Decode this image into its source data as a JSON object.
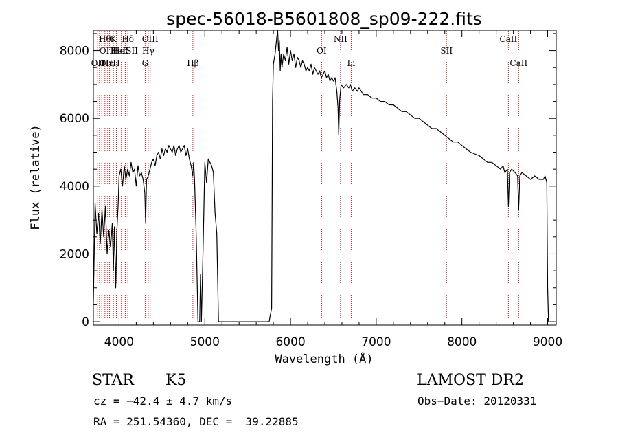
{
  "chart_data": {
    "type": "line",
    "title": "spec-56018-B5601808_sp09-222.fits",
    "xlabel": "Wavelength (Å)",
    "ylabel": "Flux (relative)",
    "xlim": [
      3700,
      9100
    ],
    "ylim": [
      -100,
      8600
    ],
    "xticks": [
      4000,
      5000,
      6000,
      7000,
      8000,
      9000
    ],
    "yticks": [
      0,
      2000,
      4000,
      6000,
      8000
    ],
    "grid": false,
    "series": [
      {
        "color": "#000000",
        "points": [
          [
            3700,
            600
          ],
          [
            3720,
            3500
          ],
          [
            3740,
            2600
          ],
          [
            3760,
            3200
          ],
          [
            3780,
            2300
          ],
          [
            3800,
            3300
          ],
          [
            3820,
            2500
          ],
          [
            3840,
            3400
          ],
          [
            3860,
            2000
          ],
          [
            3880,
            2700
          ],
          [
            3900,
            2200
          ],
          [
            3920,
            2900
          ],
          [
            3933,
            1500
          ],
          [
            3945,
            2800
          ],
          [
            3960,
            1000
          ],
          [
            3975,
            2700
          ],
          [
            3990,
            3500
          ],
          [
            4000,
            4300
          ],
          [
            4020,
            4500
          ],
          [
            4040,
            4000
          ],
          [
            4060,
            4600
          ],
          [
            4080,
            4200
          ],
          [
            4100,
            4500
          ],
          [
            4120,
            4300
          ],
          [
            4140,
            4700
          ],
          [
            4160,
            4400
          ],
          [
            4180,
            4500
          ],
          [
            4200,
            4000
          ],
          [
            4220,
            4600
          ],
          [
            4240,
            4300
          ],
          [
            4260,
            4400
          ],
          [
            4280,
            4200
          ],
          [
            4300,
            3800
          ],
          [
            4310,
            2900
          ],
          [
            4320,
            4200
          ],
          [
            4340,
            4300
          ],
          [
            4360,
            4500
          ],
          [
            4380,
            4700
          ],
          [
            4400,
            4800
          ],
          [
            4420,
            4600
          ],
          [
            4440,
            4900
          ],
          [
            4460,
            5000
          ],
          [
            4480,
            4800
          ],
          [
            4500,
            5100
          ],
          [
            4520,
            4900
          ],
          [
            4540,
            5100
          ],
          [
            4560,
            5000
          ],
          [
            4580,
            5200
          ],
          [
            4600,
            5100
          ],
          [
            4620,
            5000
          ],
          [
            4640,
            5200
          ],
          [
            4660,
            4900
          ],
          [
            4680,
            5100
          ],
          [
            4700,
            5200
          ],
          [
            4720,
            5000
          ],
          [
            4740,
            5100
          ],
          [
            4760,
            5200
          ],
          [
            4780,
            4900
          ],
          [
            4800,
            5100
          ],
          [
            4820,
            4800
          ],
          [
            4840,
            4600
          ],
          [
            4860,
            4300
          ],
          [
            4870,
            4700
          ],
          [
            4880,
            4200
          ],
          [
            4900,
            2500
          ],
          [
            4920,
            0
          ],
          [
            4940,
            0
          ],
          [
            4950,
            1400
          ],
          [
            4960,
            0
          ],
          [
            4980,
            2200
          ],
          [
            5000,
            4700
          ],
          [
            5020,
            4100
          ],
          [
            5040,
            4800
          ],
          [
            5060,
            4700
          ],
          [
            5080,
            4600
          ],
          [
            5100,
            4400
          ],
          [
            5120,
            3200
          ],
          [
            5140,
            2600
          ],
          [
            5160,
            0
          ],
          [
            5200,
            0
          ],
          [
            5700,
            0
          ],
          [
            5750,
            0
          ],
          [
            5780,
            400
          ],
          [
            5790,
            6500
          ],
          [
            5800,
            7600
          ],
          [
            5820,
            7900
          ],
          [
            5840,
            8400
          ],
          [
            5850,
            8800
          ],
          [
            5860,
            8000
          ],
          [
            5870,
            8300
          ],
          [
            5880,
            7400
          ],
          [
            5890,
            7900
          ],
          [
            5900,
            7500
          ],
          [
            5920,
            7900
          ],
          [
            5940,
            7700
          ],
          [
            5960,
            8100
          ],
          [
            5980,
            7600
          ],
          [
            6000,
            8000
          ],
          [
            6020,
            7700
          ],
          [
            6040,
            7900
          ],
          [
            6060,
            7500
          ],
          [
            6080,
            7800
          ],
          [
            6100,
            7700
          ],
          [
            6120,
            7500
          ],
          [
            6140,
            7700
          ],
          [
            6160,
            7600
          ],
          [
            6180,
            7400
          ],
          [
            6200,
            7500
          ],
          [
            6220,
            7400
          ],
          [
            6240,
            7600
          ],
          [
            6260,
            7300
          ],
          [
            6280,
            7500
          ],
          [
            6300,
            7400
          ],
          [
            6320,
            7300
          ],
          [
            6340,
            7400
          ],
          [
            6360,
            7200
          ],
          [
            6380,
            7300
          ],
          [
            6400,
            7400
          ],
          [
            6420,
            7200
          ],
          [
            6440,
            7300
          ],
          [
            6460,
            7100
          ],
          [
            6480,
            7200
          ],
          [
            6500,
            7100
          ],
          [
            6520,
            7200
          ],
          [
            6540,
            6800
          ],
          [
            6555,
            6300
          ],
          [
            6563,
            5500
          ],
          [
            6572,
            6500
          ],
          [
            6590,
            7000
          ],
          [
            6620,
            6900
          ],
          [
            6650,
            7000
          ],
          [
            6680,
            6900
          ],
          [
            6700,
            7000
          ],
          [
            6720,
            6800
          ],
          [
            6750,
            6900
          ],
          [
            6780,
            6800
          ],
          [
            6800,
            6900
          ],
          [
            6850,
            6700
          ],
          [
            6900,
            6700
          ],
          [
            6950,
            6600
          ],
          [
            7000,
            6600
          ],
          [
            7050,
            6500
          ],
          [
            7100,
            6500
          ],
          [
            7150,
            6400
          ],
          [
            7200,
            6400
          ],
          [
            7250,
            6300
          ],
          [
            7300,
            6200
          ],
          [
            7350,
            6200
          ],
          [
            7400,
            6100
          ],
          [
            7450,
            6000
          ],
          [
            7500,
            6000
          ],
          [
            7550,
            5900
          ],
          [
            7600,
            5800
          ],
          [
            7650,
            5700
          ],
          [
            7700,
            5700
          ],
          [
            7750,
            5600
          ],
          [
            7800,
            5500
          ],
          [
            7850,
            5400
          ],
          [
            7900,
            5300
          ],
          [
            7950,
            5300
          ],
          [
            8000,
            5200
          ],
          [
            8050,
            5100
          ],
          [
            8100,
            5000
          ],
          [
            8150,
            4950
          ],
          [
            8200,
            4900
          ],
          [
            8250,
            4800
          ],
          [
            8300,
            4700
          ],
          [
            8350,
            4700
          ],
          [
            8400,
            4600
          ],
          [
            8450,
            4500
          ],
          [
            8480,
            4600
          ],
          [
            8500,
            4400
          ],
          [
            8530,
            4500
          ],
          [
            8542,
            3400
          ],
          [
            8555,
            4400
          ],
          [
            8580,
            4500
          ],
          [
            8620,
            4400
          ],
          [
            8650,
            4300
          ],
          [
            8662,
            3300
          ],
          [
            8675,
            4300
          ],
          [
            8700,
            4400
          ],
          [
            8750,
            4300
          ],
          [
            8800,
            4200
          ],
          [
            8850,
            4300
          ],
          [
            8900,
            4200
          ],
          [
            8950,
            4200
          ],
          [
            8970,
            4300
          ],
          [
            8990,
            4100
          ],
          [
            9000,
            1000
          ],
          [
            9010,
            0
          ]
        ]
      }
    ],
    "reference_lines": [
      {
        "x": 3750,
        "label": "OII",
        "row": 3
      },
      {
        "x": 3771,
        "label": "",
        "row": 0
      },
      {
        "x": 3798,
        "label": "",
        "row": 0
      },
      {
        "x": 3835,
        "label": "Hθ",
        "row": 1
      },
      {
        "x": 3867,
        "label": "Hη",
        "row": 3
      },
      {
        "x": 3889,
        "label": "",
        "row": 0
      },
      {
        "x": 3933,
        "label": "K",
        "row": 1
      },
      {
        "x": 3968,
        "label": "H",
        "row": 3
      },
      {
        "x": 4026,
        "label": "",
        "row": 0
      },
      {
        "x": 4072,
        "label": "",
        "row": 0
      },
      {
        "x": 4102,
        "label": "Hδ",
        "row": 1
      },
      {
        "x": 4304,
        "label": "G",
        "row": 3
      },
      {
        "x": 4340,
        "label": "Hγ",
        "row": 2
      },
      {
        "x": 4363,
        "label": "OIII",
        "row": 1
      },
      {
        "x": 4861,
        "label": "Hβ",
        "row": 3
      },
      {
        "x": 6363,
        "label": "OI",
        "row": 2
      },
      {
        "x": 6583,
        "label": "NII",
        "row": 1
      },
      {
        "x": 6708,
        "label": "Li",
        "row": 3
      },
      {
        "x": 7820,
        "label": "SII",
        "row": 2
      },
      {
        "x": 8542,
        "label": "CaII",
        "row": 1
      },
      {
        "x": 8662,
        "label": "CaII",
        "row": 3
      }
    ],
    "overlap_labels": [
      {
        "x": 3770,
        "row": 2,
        "label": "OIIHeI"
      },
      {
        "x": 3770,
        "row": 3,
        "label": "OII"
      },
      {
        "x": 3900,
        "row": 2,
        "label": "HeISII"
      }
    ]
  },
  "info": {
    "object_class": "STAR",
    "subclass": "K5",
    "survey": "LAMOST DR2",
    "redshift_line": "cz = −42.4 ± 4.7 km/s",
    "obs_date_line": "Obs−Date: 20120331",
    "coords_line": "RA = 251.54360, DEC =  39.22885"
  },
  "colors": {
    "spectrum": "#000000",
    "reference_line": "#b22222"
  }
}
